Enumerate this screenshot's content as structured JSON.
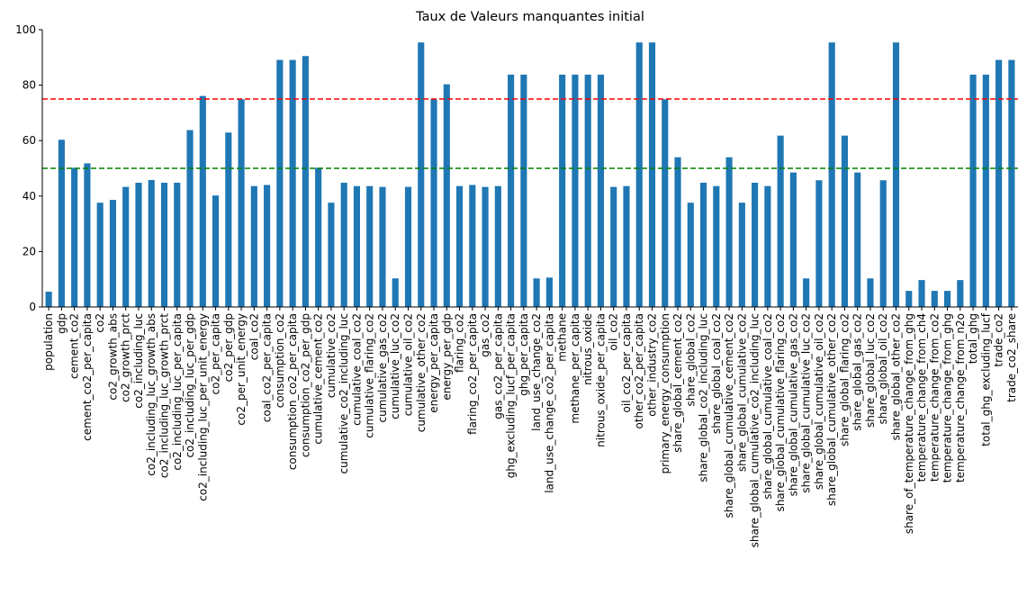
{
  "chart_data": {
    "type": "bar",
    "title": "Taux de Valeurs manquantes initial",
    "xlabel": "",
    "ylabel": "",
    "ylim": [
      0,
      100
    ],
    "yticks": [
      0,
      20,
      40,
      60,
      80,
      100
    ],
    "grid": false,
    "bar_color": "#1f77b4",
    "reference_lines": [
      {
        "value": 75,
        "color": "#ff0000",
        "style": "dashed"
      },
      {
        "value": 50,
        "color": "#008000",
        "style": "dashed"
      }
    ],
    "categories": [
      "population",
      "gdp",
      "cement_co2",
      "cement_co2_per_capita",
      "co2",
      "co2_growth_abs",
      "co2_growth_prct",
      "co2_including_luc",
      "co2_including_luc_growth_abs",
      "co2_including_luc_growth_prct",
      "co2_including_luc_per_capita",
      "co2_including_luc_per_gdp",
      "co2_including_luc_per_unit_energy",
      "co2_per_capita",
      "co2_per_gdp",
      "co2_per_unit_energy",
      "coal_co2",
      "coal_co2_per_capita",
      "consumption_co2",
      "consumption_co2_per_capita",
      "consumption_co2_per_gdp",
      "cumulative_cement_co2",
      "cumulative_co2",
      "cumulative_co2_including_luc",
      "cumulative_coal_co2",
      "cumulative_flaring_co2",
      "cumulative_gas_co2",
      "cumulative_luc_co2",
      "cumulative_oil_co2",
      "cumulative_other_co2",
      "energy_per_capita",
      "energy_per_gdp",
      "flaring_co2",
      "flaring_co2_per_capita",
      "gas_co2",
      "gas_co2_per_capita",
      "ghg_excluding_lucf_per_capita",
      "ghg_per_capita",
      "land_use_change_co2",
      "land_use_change_co2_per_capita",
      "methane",
      "methane_per_capita",
      "nitrous_oxide",
      "nitrous_oxide_per_capita",
      "oil_co2",
      "oil_co2_per_capita",
      "other_co2_per_capita",
      "other_industry_co2",
      "primary_energy_consumption",
      "share_global_cement_co2",
      "share_global_co2",
      "share_global_co2_including_luc",
      "share_global_coal_co2",
      "share_global_cumulative_cement_co2",
      "share_global_cumulative_co2",
      "share_global_cumulative_co2_including_luc",
      "share_global_cumulative_coal_co2",
      "share_global_cumulative_flaring_co2",
      "share_global_cumulative_gas_co2",
      "share_global_cumulative_luc_co2",
      "share_global_cumulative_oil_co2",
      "share_global_cumulative_other_co2",
      "share_global_flaring_co2",
      "share_global_gas_co2",
      "share_global_luc_co2",
      "share_global_oil_co2",
      "share_global_other_co2",
      "share_of_temperature_change_from_ghg",
      "temperature_change_from_ch4",
      "temperature_change_from_co2",
      "temperature_change_from_ghg",
      "temperature_change_from_n2o",
      "total_ghg",
      "total_ghg_excluding_lucf",
      "trade_co2",
      "trade_co2_share"
    ],
    "values": [
      5.5,
      60.3,
      50.2,
      51.8,
      37.6,
      38.6,
      43.3,
      44.8,
      45.8,
      44.8,
      44.8,
      63.8,
      76.1,
      40.2,
      62.9,
      74.9,
      43.6,
      44.0,
      89.1,
      89.1,
      90.5,
      50.2,
      37.6,
      44.8,
      43.6,
      43.6,
      43.3,
      10.3,
      43.3,
      95.4,
      74.9,
      80.3,
      43.6,
      44.0,
      43.3,
      43.6,
      83.8,
      83.8,
      10.3,
      10.6,
      83.8,
      83.8,
      83.8,
      83.8,
      43.3,
      43.6,
      95.4,
      95.4,
      74.9,
      54.0,
      37.6,
      44.8,
      43.6,
      54.0,
      37.6,
      44.8,
      43.6,
      61.8,
      48.5,
      10.3,
      45.7,
      95.4,
      61.8,
      48.5,
      10.3,
      45.7,
      95.4,
      5.8,
      9.7,
      5.8,
      5.8,
      9.7,
      83.8,
      83.8,
      89.1,
      89.1
    ]
  }
}
